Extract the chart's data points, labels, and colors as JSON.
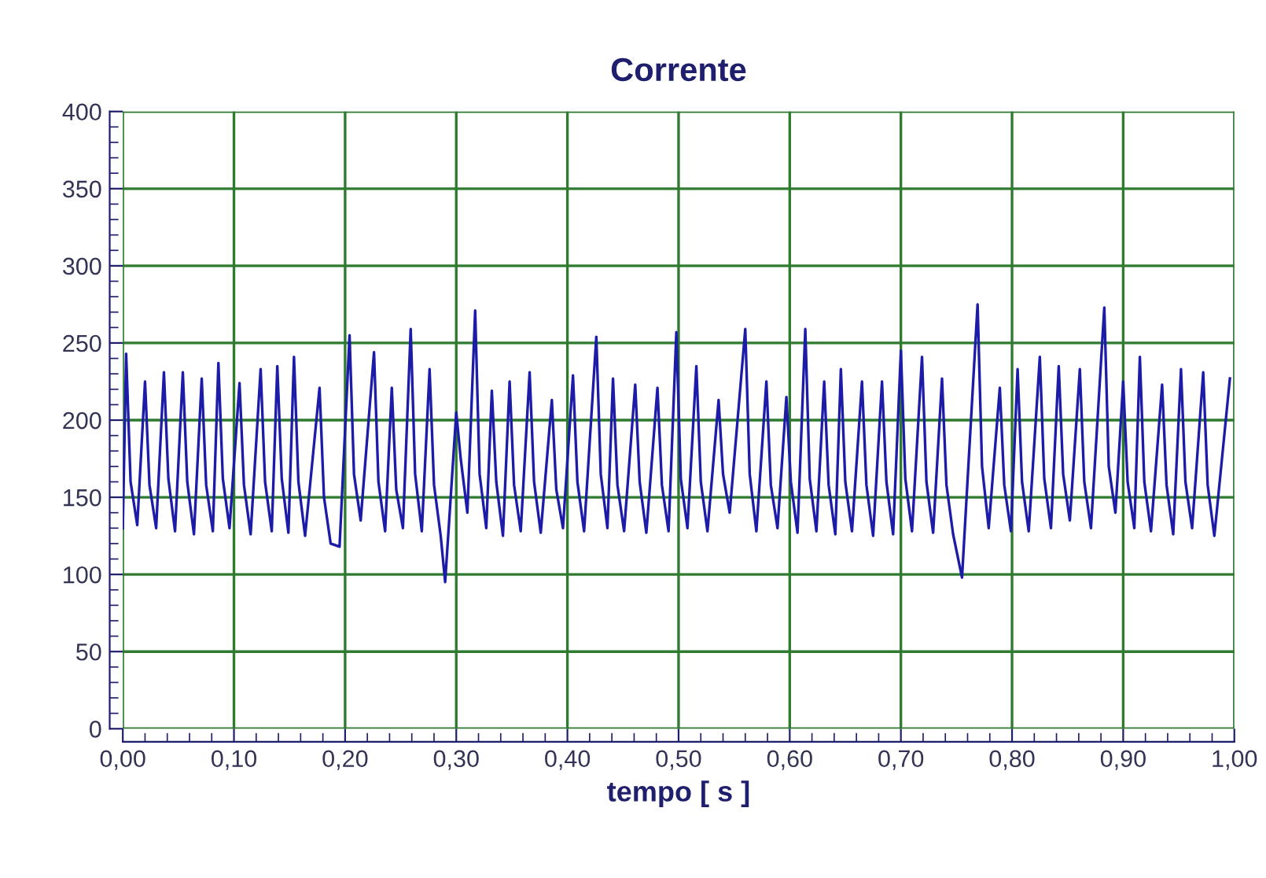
{
  "chart_data": {
    "type": "line",
    "title": "Corrente",
    "xlabel": "tempo [ s ]",
    "series": [
      {
        "color": "#1c1ca8",
        "x": [
          0.0,
          0.003,
          0.007,
          0.013,
          0.02,
          0.024,
          0.03,
          0.037,
          0.041,
          0.047,
          0.054,
          0.058,
          0.064,
          0.071,
          0.075,
          0.081,
          0.086,
          0.09,
          0.096,
          0.105,
          0.109,
          0.115,
          0.124,
          0.128,
          0.134,
          0.139,
          0.143,
          0.149,
          0.154,
          0.158,
          0.164,
          0.177,
          0.181,
          0.187,
          0.195,
          0.204,
          0.208,
          0.214,
          0.226,
          0.23,
          0.236,
          0.242,
          0.246,
          0.252,
          0.259,
          0.263,
          0.269,
          0.276,
          0.28,
          0.286,
          0.29,
          0.3,
          0.304,
          0.31,
          0.317,
          0.321,
          0.327,
          0.332,
          0.336,
          0.342,
          0.348,
          0.352,
          0.358,
          0.366,
          0.37,
          0.376,
          0.386,
          0.39,
          0.396,
          0.405,
          0.409,
          0.415,
          0.426,
          0.43,
          0.436,
          0.441,
          0.445,
          0.451,
          0.461,
          0.465,
          0.471,
          0.481,
          0.485,
          0.491,
          0.498,
          0.502,
          0.508,
          0.516,
          0.52,
          0.526,
          0.536,
          0.54,
          0.546,
          0.56,
          0.564,
          0.57,
          0.579,
          0.583,
          0.589,
          0.597,
          0.601,
          0.607,
          0.614,
          0.618,
          0.624,
          0.631,
          0.635,
          0.641,
          0.646,
          0.65,
          0.656,
          0.665,
          0.669,
          0.675,
          0.683,
          0.687,
          0.693,
          0.7,
          0.704,
          0.71,
          0.719,
          0.723,
          0.729,
          0.737,
          0.741,
          0.747,
          0.755,
          0.769,
          0.773,
          0.779,
          0.789,
          0.793,
          0.799,
          0.805,
          0.809,
          0.815,
          0.825,
          0.829,
          0.835,
          0.842,
          0.846,
          0.852,
          0.861,
          0.865,
          0.871,
          0.883,
          0.887,
          0.893,
          0.9,
          0.904,
          0.91,
          0.915,
          0.919,
          0.925,
          0.935,
          0.939,
          0.945,
          0.952,
          0.956,
          0.962,
          0.972,
          0.976,
          0.982,
          0.996
        ],
        "values": [
          130,
          243,
          160,
          132,
          225,
          158,
          130,
          231,
          162,
          128,
          231,
          160,
          126,
          227,
          158,
          128,
          237,
          162,
          130,
          224,
          158,
          126,
          233,
          160,
          128,
          235,
          162,
          127,
          241,
          160,
          125,
          221,
          150,
          120,
          118,
          255,
          165,
          135,
          244,
          160,
          128,
          221,
          155,
          130,
          259,
          165,
          128,
          233,
          158,
          125,
          95,
          205,
          175,
          140,
          271,
          165,
          130,
          219,
          160,
          125,
          225,
          158,
          128,
          231,
          160,
          127,
          213,
          155,
          130,
          229,
          160,
          128,
          254,
          165,
          130,
          227,
          158,
          128,
          223,
          160,
          127,
          221,
          158,
          128,
          257,
          162,
          130,
          235,
          160,
          128,
          213,
          165,
          140,
          259,
          165,
          128,
          225,
          158,
          130,
          215,
          160,
          127,
          259,
          162,
          128,
          225,
          158,
          126,
          233,
          160,
          128,
          225,
          158,
          125,
          225,
          160,
          126,
          245,
          162,
          128,
          241,
          160,
          127,
          227,
          158,
          126,
          98,
          275,
          170,
          130,
          221,
          158,
          128,
          233,
          160,
          128,
          241,
          162,
          130,
          235,
          165,
          135,
          233,
          160,
          130,
          273,
          170,
          140,
          225,
          160,
          130,
          241,
          160,
          128,
          223,
          158,
          126,
          233,
          160,
          130,
          231,
          158,
          125,
          227
        ]
      }
    ],
    "xlim": [
      0,
      1
    ],
    "ylim": [
      0,
      400
    ],
    "xticks": [
      {
        "value": 0,
        "label": "0,00"
      },
      {
        "value": 0.02,
        "label": null
      },
      {
        "value": 0.04,
        "label": null
      },
      {
        "value": 0.06,
        "label": null
      },
      {
        "value": 0.08,
        "label": null
      },
      {
        "value": 0.1,
        "label": "0,10"
      },
      {
        "value": 0.12,
        "label": null
      },
      {
        "value": 0.14,
        "label": null
      },
      {
        "value": 0.16,
        "label": null
      },
      {
        "value": 0.18,
        "label": null
      },
      {
        "value": 0.2,
        "label": "0,20"
      },
      {
        "value": 0.22,
        "label": null
      },
      {
        "value": 0.24,
        "label": null
      },
      {
        "value": 0.26,
        "label": null
      },
      {
        "value": 0.28,
        "label": null
      },
      {
        "value": 0.3,
        "label": "0,30"
      },
      {
        "value": 0.32,
        "label": null
      },
      {
        "value": 0.34,
        "label": null
      },
      {
        "value": 0.36,
        "label": null
      },
      {
        "value": 0.38,
        "label": null
      },
      {
        "value": 0.4,
        "label": "0,40"
      },
      {
        "value": 0.42,
        "label": null
      },
      {
        "value": 0.44,
        "label": null
      },
      {
        "value": 0.46,
        "label": null
      },
      {
        "value": 0.48,
        "label": null
      },
      {
        "value": 0.5,
        "label": "0,50"
      },
      {
        "value": 0.52,
        "label": null
      },
      {
        "value": 0.54,
        "label": null
      },
      {
        "value": 0.56,
        "label": null
      },
      {
        "value": 0.58,
        "label": null
      },
      {
        "value": 0.6,
        "label": "0,60"
      },
      {
        "value": 0.62,
        "label": null
      },
      {
        "value": 0.64,
        "label": null
      },
      {
        "value": 0.66,
        "label": null
      },
      {
        "value": 0.68,
        "label": null
      },
      {
        "value": 0.7,
        "label": "0,70"
      },
      {
        "value": 0.72,
        "label": null
      },
      {
        "value": 0.74,
        "label": null
      },
      {
        "value": 0.76,
        "label": null
      },
      {
        "value": 0.78,
        "label": null
      },
      {
        "value": 0.8,
        "label": "0,80"
      },
      {
        "value": 0.82,
        "label": null
      },
      {
        "value": 0.84,
        "label": null
      },
      {
        "value": 0.86,
        "label": null
      },
      {
        "value": 0.88,
        "label": null
      },
      {
        "value": 0.9,
        "label": "0,90"
      },
      {
        "value": 0.92,
        "label": null
      },
      {
        "value": 0.94,
        "label": null
      },
      {
        "value": 0.96,
        "label": null
      },
      {
        "value": 0.98,
        "label": null
      },
      {
        "value": 1,
        "label": "1,00"
      }
    ],
    "yticks": [
      0,
      {
        "value": 10,
        "label": null
      },
      {
        "value": 20,
        "label": null
      },
      {
        "value": 30,
        "label": null
      },
      {
        "value": 40,
        "label": null
      },
      50,
      {
        "value": 60,
        "label": null
      },
      {
        "value": 70,
        "label": null
      },
      {
        "value": 80,
        "label": null
      },
      {
        "value": 90,
        "label": null
      },
      100,
      {
        "value": 110,
        "label": null
      },
      {
        "value": 120,
        "label": null
      },
      {
        "value": 130,
        "label": null
      },
      {
        "value": 140,
        "label": null
      },
      150,
      {
        "value": 160,
        "label": null
      },
      {
        "value": 170,
        "label": null
      },
      {
        "value": 180,
        "label": null
      },
      {
        "value": 190,
        "label": null
      },
      200,
      {
        "value": 210,
        "label": null
      },
      {
        "value": 220,
        "label": null
      },
      {
        "value": 230,
        "label": null
      },
      {
        "value": 240,
        "label": null
      },
      250,
      {
        "value": 260,
        "label": null
      },
      {
        "value": 270,
        "label": null
      },
      {
        "value": 280,
        "label": null
      },
      {
        "value": 290,
        "label": null
      },
      300,
      {
        "value": 310,
        "label": null
      },
      {
        "value": 320,
        "label": null
      },
      {
        "value": 330,
        "label": null
      },
      {
        "value": 340,
        "label": null
      },
      350,
      {
        "value": 360,
        "label": null
      },
      {
        "value": 370,
        "label": null
      },
      {
        "value": 380,
        "label": null
      },
      {
        "value": 390,
        "label": null
      },
      400
    ],
    "grid": true,
    "marker": "none",
    "line_style": "solid",
    "legend": false
  }
}
